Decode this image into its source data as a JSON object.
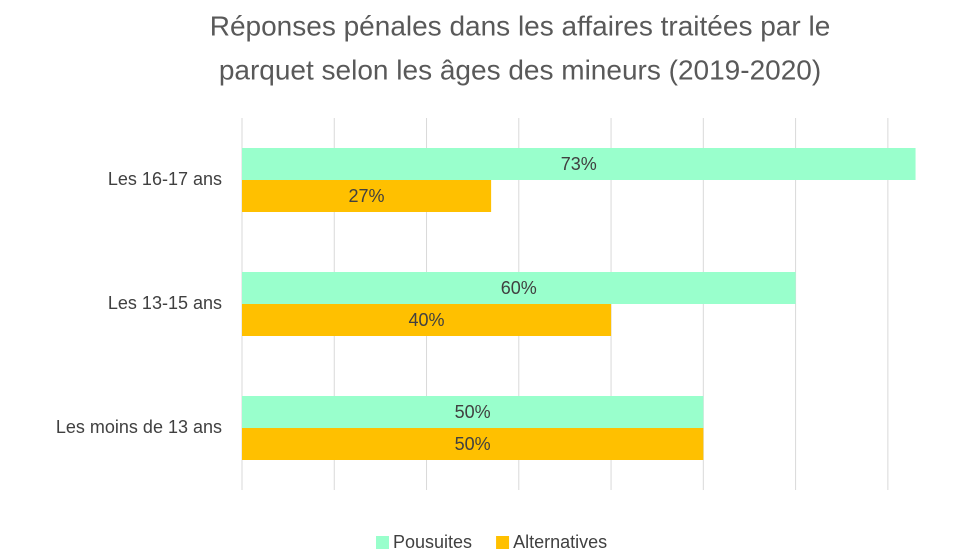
{
  "chart_data": {
    "type": "barh",
    "title": [
      "Réponses pénales dans les affaires traitées par le",
      "parquet selon les âges des mineurs (2019-2020)"
    ],
    "categories": [
      "Les 16-17 ans",
      "Les 13-15 ans",
      "Les moins de 13 ans"
    ],
    "series": [
      {
        "name": "Pousuites",
        "color": "#99ffcc",
        "values": [
          73,
          60,
          50
        ],
        "value_labels": [
          "73%",
          "60%",
          "50%"
        ]
      },
      {
        "name": "Alternatives",
        "color": "#ffc000",
        "values": [
          27,
          40,
          50
        ],
        "value_labels": [
          "27%",
          "40%",
          "50%"
        ]
      }
    ],
    "xlim": [
      0,
      75
    ],
    "xticks": [
      0,
      10,
      20,
      30,
      40,
      50,
      60,
      70
    ],
    "grid": true,
    "legend": "bottom"
  }
}
